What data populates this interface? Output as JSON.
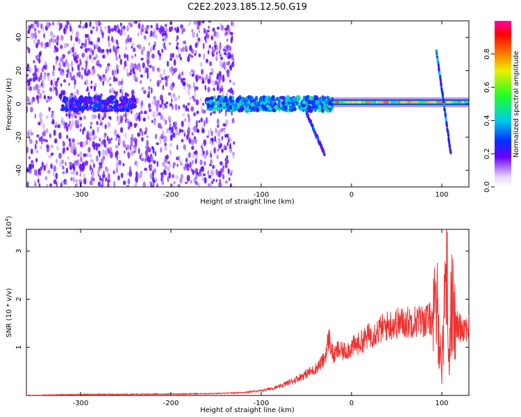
{
  "title": "C2E2.2023.185.12.50.G19",
  "chart_data": [
    {
      "type": "heatmap",
      "xlabel": "Height of straight line (km)",
      "ylabel": "Frequency (Hz)",
      "xlim": [
        -360,
        130
      ],
      "ylim": [
        -50,
        50
      ],
      "xticks": [
        -300,
        -200,
        -100,
        0,
        100
      ],
      "yticks": [
        -40,
        -20,
        0,
        20,
        40
      ],
      "colorbar": {
        "label": "Normalized spectral amplitude",
        "range": [
          0.0,
          1.0
        ],
        "ticks": [
          0.0,
          0.2,
          0.4,
          0.6,
          0.8
        ]
      },
      "features": [
        {
          "name": "noise-region",
          "x_range": [
            -360,
            -130
          ],
          "y_range": [
            -50,
            50
          ],
          "amplitude": 0.15
        },
        {
          "name": "main-ridge-left",
          "x_range": [
            -320,
            -240
          ],
          "y_center": 0,
          "amplitude": 0.25
        },
        {
          "name": "main-ridge-mid",
          "x_range": [
            -160,
            -20
          ],
          "y_center": 0,
          "amplitude": 0.4
        },
        {
          "name": "main-ridge-right",
          "x_range": [
            -20,
            130
          ],
          "y_center": 1,
          "amplitude": 0.75
        },
        {
          "name": "descending-arc",
          "x_start": -50,
          "x_end": -30,
          "y_start": -5,
          "y_end": -30,
          "amplitude": 0.25
        },
        {
          "name": "diagonal-streak",
          "x_start": 94,
          "x_end": 110,
          "y_start": 32,
          "y_end": -30,
          "amplitude": 0.3
        }
      ]
    },
    {
      "type": "line",
      "xlabel": "Height of straight line (km)",
      "ylabel": "SNR (10 * v/v)",
      "exponent_label": "(x10",
      "exponent_power": "4",
      "exponent_close": ")",
      "xlim": [
        -360,
        130
      ],
      "ylim": [
        0,
        3.45
      ],
      "xticks": [
        -300,
        -200,
        -100,
        0,
        100
      ],
      "yticks": [
        1,
        2,
        3
      ],
      "series": [
        {
          "color": "#ee3333",
          "x": [
            -360,
            -300,
            -200,
            -150,
            -120,
            -100,
            -80,
            -60,
            -40,
            -30,
            -25,
            -20,
            -15,
            -10,
            0,
            10,
            20,
            30,
            40,
            50,
            60,
            70,
            80,
            90,
            95,
            100,
            105,
            108,
            110,
            115,
            120,
            130
          ],
          "y": [
            0.0,
            0.02,
            0.03,
            0.04,
            0.06,
            0.1,
            0.18,
            0.35,
            0.55,
            0.75,
            1.2,
            0.8,
            0.95,
            0.9,
            1.0,
            1.1,
            1.25,
            1.35,
            1.45,
            1.5,
            1.52,
            1.55,
            1.55,
            1.6,
            1.8,
            0.5,
            3.1,
            0.6,
            2.1,
            1.45,
            1.43,
            1.42
          ]
        }
      ]
    }
  ]
}
